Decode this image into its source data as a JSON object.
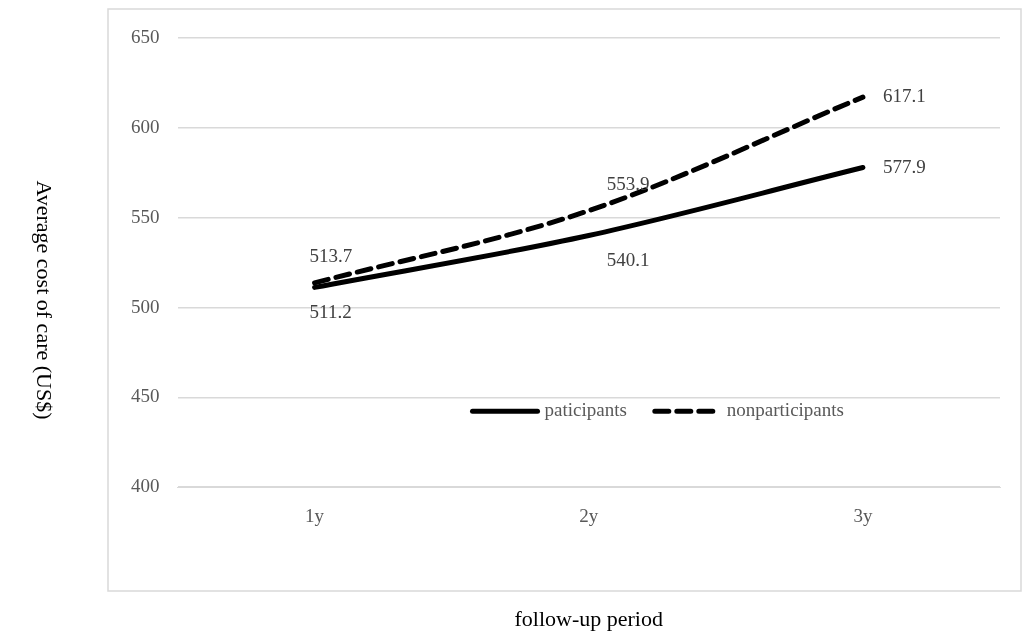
{
  "chart_data": {
    "type": "line",
    "xlabel": "follow-up period",
    "ylabel": "Average cost of care (US$)",
    "categories": [
      "1y",
      "2y",
      "3y"
    ],
    "series": [
      {
        "name": "paticipants",
        "color": "#000000",
        "values": [
          511.2,
          540.1,
          577.9
        ],
        "line_style": "solid"
      },
      {
        "name": "nonparticipants",
        "color": "#000000",
        "values": [
          513.7,
          553.9,
          617.1
        ],
        "line_style": "dashed"
      }
    ],
    "ylim": [
      400,
      650
    ],
    "yticks": [
      400,
      450,
      500,
      550,
      600,
      650
    ],
    "grid": "y",
    "legend": "bottom right",
    "data_labels": true,
    "marker": "none"
  }
}
